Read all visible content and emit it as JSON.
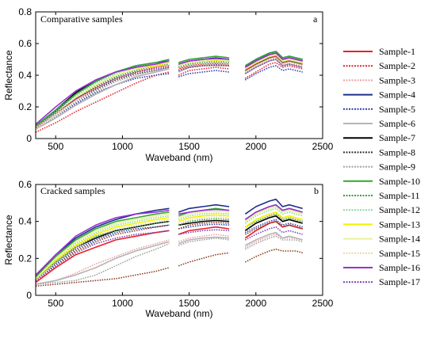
{
  "colors": {
    "s1": "#e8202a",
    "s2": "#e8202a",
    "s3": "#f0a0a4",
    "s4": "#1c2f8c",
    "s5": "#2c3fae",
    "s6": "#b4b4b4",
    "s7": "#000000",
    "s8": "#333333",
    "s9": "#a0a0a0",
    "s10": "#2ea82e",
    "s11": "#3c9c3c",
    "s12": "#8cd99c",
    "s13": "#f2f200",
    "s14": "#e8f29a",
    "s15": "#f4d2a8",
    "s16": "#9a2fd6",
    "s17": "#7b3fb0",
    "brown": "#8a3b1e"
  },
  "chart_data": [
    {
      "type": "line",
      "title": "Comparative samples",
      "panel_label": "a",
      "xlabel": "Waveband (nm)",
      "ylabel": "Reflectance",
      "xlim": [
        350,
        2500
      ],
      "ylim": [
        0,
        0.8
      ],
      "xticks": [
        "500",
        "1000",
        "1500",
        "2000",
        "2500"
      ],
      "yticks": [
        "0",
        "0.2",
        "0.4",
        "0.6",
        "0.8"
      ],
      "segment_breaks": [
        [
          1350,
          1420
        ],
        [
          1800,
          1920
        ]
      ],
      "x": [
        350,
        500,
        650,
        800,
        950,
        1100,
        1250,
        1350,
        1420,
        1500,
        1600,
        1700,
        1800,
        1920,
        2000,
        2100,
        2150,
        2200,
        2250,
        2300,
        2350
      ],
      "series": [
        {
          "name": "Sample-1",
          "values": [
            0.07,
            0.16,
            0.25,
            0.32,
            0.38,
            0.42,
            0.45,
            0.46,
            0.44,
            0.46,
            0.47,
            0.475,
            0.47,
            0.43,
            0.47,
            0.51,
            0.52,
            0.48,
            0.49,
            0.48,
            0.47
          ]
        },
        {
          "name": "Sample-2",
          "values": [
            0.04,
            0.1,
            0.17,
            0.23,
            0.29,
            0.35,
            0.4,
            0.42,
            0.4,
            0.43,
            0.44,
            0.45,
            0.44,
            0.38,
            0.42,
            0.47,
            0.48,
            0.45,
            0.46,
            0.45,
            0.44
          ]
        },
        {
          "name": "Sample-3",
          "values": [
            0.06,
            0.13,
            0.21,
            0.28,
            0.34,
            0.39,
            0.42,
            0.44,
            0.42,
            0.45,
            0.46,
            0.465,
            0.46,
            0.41,
            0.45,
            0.49,
            0.5,
            0.46,
            0.47,
            0.46,
            0.45
          ]
        },
        {
          "name": "Sample-4",
          "values": [
            0.07,
            0.17,
            0.28,
            0.36,
            0.42,
            0.46,
            0.48,
            0.49,
            0.47,
            0.49,
            0.5,
            0.51,
            0.5,
            0.45,
            0.5,
            0.54,
            0.55,
            0.51,
            0.52,
            0.51,
            0.5
          ]
        },
        {
          "name": "Sample-5",
          "values": [
            0.06,
            0.14,
            0.22,
            0.29,
            0.34,
            0.38,
            0.4,
            0.41,
            0.39,
            0.41,
            0.42,
            0.43,
            0.42,
            0.37,
            0.41,
            0.45,
            0.46,
            0.43,
            0.44,
            0.43,
            0.42
          ]
        },
        {
          "name": "Sample-6",
          "values": [
            0.06,
            0.13,
            0.21,
            0.28,
            0.34,
            0.39,
            0.42,
            0.44,
            0.42,
            0.45,
            0.46,
            0.46,
            0.46,
            0.41,
            0.45,
            0.49,
            0.5,
            0.46,
            0.47,
            0.46,
            0.45
          ]
        },
        {
          "name": "Sample-7",
          "values": [
            0.08,
            0.18,
            0.29,
            0.37,
            0.42,
            0.45,
            0.47,
            0.48,
            0.46,
            0.48,
            0.49,
            0.495,
            0.49,
            0.44,
            0.49,
            0.53,
            0.54,
            0.5,
            0.51,
            0.5,
            0.49
          ]
        },
        {
          "name": "Sample-8",
          "values": [
            0.06,
            0.15,
            0.24,
            0.31,
            0.37,
            0.41,
            0.43,
            0.45,
            0.43,
            0.45,
            0.46,
            0.465,
            0.46,
            0.42,
            0.46,
            0.5,
            0.51,
            0.47,
            0.48,
            0.47,
            0.46
          ]
        },
        {
          "name": "Sample-9",
          "values": [
            0.06,
            0.14,
            0.23,
            0.3,
            0.36,
            0.4,
            0.43,
            0.45,
            0.43,
            0.46,
            0.47,
            0.47,
            0.47,
            0.42,
            0.46,
            0.5,
            0.51,
            0.47,
            0.48,
            0.47,
            0.46
          ]
        },
        {
          "name": "Sample-10",
          "values": [
            0.08,
            0.18,
            0.28,
            0.36,
            0.42,
            0.46,
            0.48,
            0.5,
            0.48,
            0.5,
            0.51,
            0.52,
            0.51,
            0.46,
            0.5,
            0.54,
            0.55,
            0.51,
            0.52,
            0.51,
            0.5
          ]
        },
        {
          "name": "Sample-11",
          "values": [
            0.07,
            0.16,
            0.25,
            0.33,
            0.39,
            0.43,
            0.46,
            0.47,
            0.45,
            0.47,
            0.48,
            0.485,
            0.48,
            0.43,
            0.47,
            0.51,
            0.52,
            0.48,
            0.49,
            0.48,
            0.47
          ]
        },
        {
          "name": "Sample-12",
          "values": [
            0.07,
            0.17,
            0.27,
            0.35,
            0.41,
            0.45,
            0.47,
            0.49,
            0.47,
            0.49,
            0.5,
            0.505,
            0.5,
            0.45,
            0.49,
            0.53,
            0.54,
            0.5,
            0.51,
            0.5,
            0.49
          ]
        },
        {
          "name": "Sample-13",
          "values": [
            0.07,
            0.16,
            0.26,
            0.34,
            0.4,
            0.44,
            0.46,
            0.48,
            0.46,
            0.48,
            0.49,
            0.495,
            0.49,
            0.44,
            0.48,
            0.52,
            0.53,
            0.49,
            0.5,
            0.49,
            0.48
          ]
        },
        {
          "name": "Sample-14",
          "values": [
            0.07,
            0.16,
            0.26,
            0.34,
            0.4,
            0.44,
            0.47,
            0.48,
            0.46,
            0.48,
            0.49,
            0.5,
            0.49,
            0.44,
            0.48,
            0.52,
            0.53,
            0.49,
            0.5,
            0.49,
            0.48
          ]
        },
        {
          "name": "Sample-15",
          "values": [
            0.06,
            0.15,
            0.24,
            0.32,
            0.38,
            0.42,
            0.45,
            0.46,
            0.44,
            0.46,
            0.47,
            0.475,
            0.47,
            0.42,
            0.46,
            0.5,
            0.51,
            0.47,
            0.48,
            0.47,
            0.46
          ]
        },
        {
          "name": "Sample-16",
          "values": [
            0.09,
            0.2,
            0.3,
            0.37,
            0.42,
            0.45,
            0.47,
            0.49,
            0.47,
            0.49,
            0.5,
            0.505,
            0.5,
            0.45,
            0.49,
            0.53,
            0.54,
            0.5,
            0.51,
            0.5,
            0.49
          ]
        },
        {
          "name": "Sample-17",
          "values": [
            0.07,
            0.16,
            0.25,
            0.32,
            0.38,
            0.42,
            0.44,
            0.45,
            0.43,
            0.45,
            0.46,
            0.465,
            0.46,
            0.41,
            0.45,
            0.49,
            0.5,
            0.46,
            0.47,
            0.46,
            0.45
          ]
        }
      ]
    },
    {
      "type": "line",
      "title": "Cracked samples",
      "panel_label": "b",
      "xlabel": "Waveband (nm)",
      "ylabel": "Reflectance",
      "xlim": [
        350,
        2500
      ],
      "ylim": [
        0,
        0.6
      ],
      "xticks": [
        "500",
        "1000",
        "1500",
        "2000",
        "2500"
      ],
      "yticks": [
        "0",
        "0.2",
        "0.4",
        "0.6"
      ],
      "segment_breaks": [
        [
          1350,
          1420
        ],
        [
          1800,
          1920
        ]
      ],
      "x": [
        350,
        500,
        650,
        800,
        950,
        1100,
        1250,
        1350,
        1420,
        1500,
        1600,
        1700,
        1800,
        1920,
        2000,
        2100,
        2150,
        2200,
        2250,
        2300,
        2350
      ],
      "series": [
        {
          "name": "Sample-1",
          "values": [
            0.07,
            0.15,
            0.22,
            0.26,
            0.3,
            0.32,
            0.34,
            0.35,
            0.33,
            0.35,
            0.36,
            0.37,
            0.36,
            0.31,
            0.35,
            0.39,
            0.4,
            0.37,
            0.38,
            0.37,
            0.36
          ]
        },
        {
          "name": "Sample-2",
          "values": [
            0.05,
            0.06,
            0.07,
            0.08,
            0.09,
            0.11,
            0.13,
            0.15,
            0.16,
            0.18,
            0.2,
            0.22,
            0.23,
            0.18,
            0.21,
            0.24,
            0.25,
            0.24,
            0.24,
            0.24,
            0.23
          ]
        },
        {
          "name": "Sample-3",
          "values": [
            0.06,
            0.08,
            0.12,
            0.17,
            0.21,
            0.25,
            0.28,
            0.3,
            0.29,
            0.31,
            0.32,
            0.33,
            0.32,
            0.26,
            0.29,
            0.32,
            0.33,
            0.31,
            0.31,
            0.31,
            0.3
          ]
        },
        {
          "name": "Sample-4",
          "values": [
            0.1,
            0.22,
            0.31,
            0.37,
            0.41,
            0.44,
            0.46,
            0.47,
            0.45,
            0.47,
            0.48,
            0.49,
            0.48,
            0.44,
            0.48,
            0.51,
            0.52,
            0.48,
            0.49,
            0.48,
            0.47
          ]
        },
        {
          "name": "Sample-5",
          "values": [
            0.08,
            0.17,
            0.25,
            0.3,
            0.34,
            0.36,
            0.37,
            0.38,
            0.36,
            0.37,
            0.38,
            0.385,
            0.38,
            0.34,
            0.37,
            0.4,
            0.41,
            0.38,
            0.39,
            0.38,
            0.37
          ]
        },
        {
          "name": "Sample-6",
          "values": [
            0.06,
            0.08,
            0.11,
            0.15,
            0.2,
            0.24,
            0.27,
            0.29,
            0.28,
            0.3,
            0.31,
            0.315,
            0.31,
            0.27,
            0.3,
            0.33,
            0.34,
            0.31,
            0.32,
            0.31,
            0.3
          ]
        },
        {
          "name": "Sample-7",
          "values": [
            0.09,
            0.18,
            0.26,
            0.31,
            0.35,
            0.37,
            0.39,
            0.4,
            0.38,
            0.39,
            0.4,
            0.405,
            0.4,
            0.35,
            0.39,
            0.42,
            0.43,
            0.4,
            0.41,
            0.4,
            0.39
          ]
        },
        {
          "name": "Sample-8",
          "values": [
            0.08,
            0.16,
            0.24,
            0.29,
            0.33,
            0.35,
            0.37,
            0.38,
            0.36,
            0.38,
            0.39,
            0.395,
            0.39,
            0.33,
            0.36,
            0.39,
            0.4,
            0.37,
            0.38,
            0.37,
            0.36
          ]
        },
        {
          "name": "Sample-9",
          "values": [
            0.06,
            0.07,
            0.08,
            0.11,
            0.16,
            0.21,
            0.25,
            0.28,
            0.27,
            0.29,
            0.3,
            0.31,
            0.3,
            0.25,
            0.28,
            0.31,
            0.32,
            0.3,
            0.3,
            0.3,
            0.29
          ]
        },
        {
          "name": "Sample-10",
          "values": [
            0.1,
            0.21,
            0.3,
            0.36,
            0.4,
            0.42,
            0.44,
            0.45,
            0.43,
            0.45,
            0.46,
            0.47,
            0.46,
            0.41,
            0.45,
            0.48,
            0.49,
            0.46,
            0.47,
            0.46,
            0.45
          ]
        },
        {
          "name": "Sample-11",
          "values": [
            0.09,
            0.18,
            0.26,
            0.32,
            0.35,
            0.37,
            0.39,
            0.4,
            0.38,
            0.4,
            0.41,
            0.415,
            0.41,
            0.37,
            0.4,
            0.43,
            0.44,
            0.41,
            0.42,
            0.41,
            0.4
          ]
        },
        {
          "name": "Sample-12",
          "values": [
            0.09,
            0.19,
            0.28,
            0.34,
            0.38,
            0.4,
            0.42,
            0.43,
            0.41,
            0.43,
            0.44,
            0.445,
            0.44,
            0.39,
            0.43,
            0.46,
            0.47,
            0.44,
            0.45,
            0.44,
            0.43
          ]
        },
        {
          "name": "Sample-13",
          "values": [
            0.09,
            0.19,
            0.27,
            0.33,
            0.37,
            0.39,
            0.41,
            0.42,
            0.4,
            0.42,
            0.43,
            0.435,
            0.43,
            0.37,
            0.41,
            0.44,
            0.45,
            0.42,
            0.43,
            0.42,
            0.41
          ]
        },
        {
          "name": "Sample-14",
          "values": [
            0.09,
            0.2,
            0.29,
            0.35,
            0.39,
            0.41,
            0.43,
            0.44,
            0.42,
            0.44,
            0.45,
            0.455,
            0.45,
            0.4,
            0.44,
            0.47,
            0.48,
            0.45,
            0.46,
            0.45,
            0.44
          ]
        },
        {
          "name": "Sample-15",
          "values": [
            0.08,
            0.18,
            0.26,
            0.32,
            0.36,
            0.38,
            0.4,
            0.41,
            0.39,
            0.41,
            0.42,
            0.425,
            0.42,
            0.36,
            0.4,
            0.43,
            0.44,
            0.41,
            0.42,
            0.41,
            0.4
          ]
        },
        {
          "name": "Sample-16",
          "values": [
            0.11,
            0.22,
            0.32,
            0.38,
            0.42,
            0.44,
            0.45,
            0.46,
            0.44,
            0.45,
            0.46,
            0.465,
            0.46,
            0.41,
            0.45,
            0.48,
            0.49,
            0.46,
            0.47,
            0.46,
            0.45
          ]
        },
        {
          "name": "Sample-17",
          "values": [
            0.08,
            0.16,
            0.23,
            0.28,
            0.31,
            0.33,
            0.34,
            0.35,
            0.33,
            0.34,
            0.35,
            0.355,
            0.35,
            0.3,
            0.33,
            0.36,
            0.37,
            0.34,
            0.35,
            0.34,
            0.33
          ]
        }
      ]
    }
  ],
  "legend": [
    {
      "label": "Sample-1",
      "color_key": "s1",
      "dash": "solid"
    },
    {
      "label": "Sample-2",
      "color_key": "s2",
      "dash": "dot"
    },
    {
      "label": "Sample-3",
      "color_key": "s3",
      "dash": "dot"
    },
    {
      "label": "Sample-4",
      "color_key": "s4",
      "dash": "solid"
    },
    {
      "label": "Sample-5",
      "color_key": "s5",
      "dash": "dot"
    },
    {
      "label": "Sample-6",
      "color_key": "s6",
      "dash": "solid"
    },
    {
      "label": "Sample-7",
      "color_key": "s7",
      "dash": "solid"
    },
    {
      "label": "Sample-8",
      "color_key": "s8",
      "dash": "dot"
    },
    {
      "label": "Sample-9",
      "color_key": "s9",
      "dash": "dot"
    },
    {
      "label": "Sample-10",
      "color_key": "s10",
      "dash": "solid"
    },
    {
      "label": "Sample-11",
      "color_key": "s11",
      "dash": "dot"
    },
    {
      "label": "Sample-12",
      "color_key": "s12",
      "dash": "dot"
    },
    {
      "label": "Sample-13",
      "color_key": "s13",
      "dash": "solid"
    },
    {
      "label": "Sample-14",
      "color_key": "s14",
      "dash": "solid"
    },
    {
      "label": "Sample-15",
      "color_key": "s15",
      "dash": "dot"
    },
    {
      "label": "Sample-16",
      "color_key": "s16",
      "dash": "solid"
    },
    {
      "label": "Sample-17",
      "color_key": "s17",
      "dash": "dot"
    }
  ]
}
